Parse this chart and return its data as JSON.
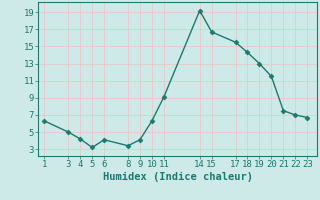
{
  "x": [
    1,
    3,
    4,
    5,
    6,
    8,
    9,
    10,
    11,
    14,
    15,
    17,
    18,
    19,
    20,
    21,
    22,
    23
  ],
  "y": [
    6.3,
    5.0,
    4.2,
    3.2,
    4.1,
    3.4,
    4.1,
    6.3,
    9.1,
    19.2,
    16.7,
    15.5,
    14.3,
    13.0,
    11.5,
    7.5,
    7.0,
    6.7
  ],
  "line_color": "#1a7a6e",
  "bg_color": "#ceeae8",
  "grid_color": "#e8c8c8",
  "xlabel": "Humidex (Indice chaleur)",
  "xticks": [
    1,
    3,
    4,
    5,
    6,
    8,
    9,
    10,
    11,
    14,
    15,
    17,
    18,
    19,
    20,
    21,
    22,
    23
  ],
  "yticks": [
    3,
    5,
    7,
    9,
    11,
    13,
    15,
    17,
    19
  ],
  "ylim": [
    2.2,
    20.2
  ],
  "xlim": [
    0.5,
    23.8
  ],
  "marker": "D",
  "markersize": 2.5,
  "linewidth": 1.0,
  "xlabel_fontsize": 7.5,
  "tick_fontsize": 6.5,
  "tick_color": "#1a7a6e",
  "axis_color": "#1a7a6e"
}
